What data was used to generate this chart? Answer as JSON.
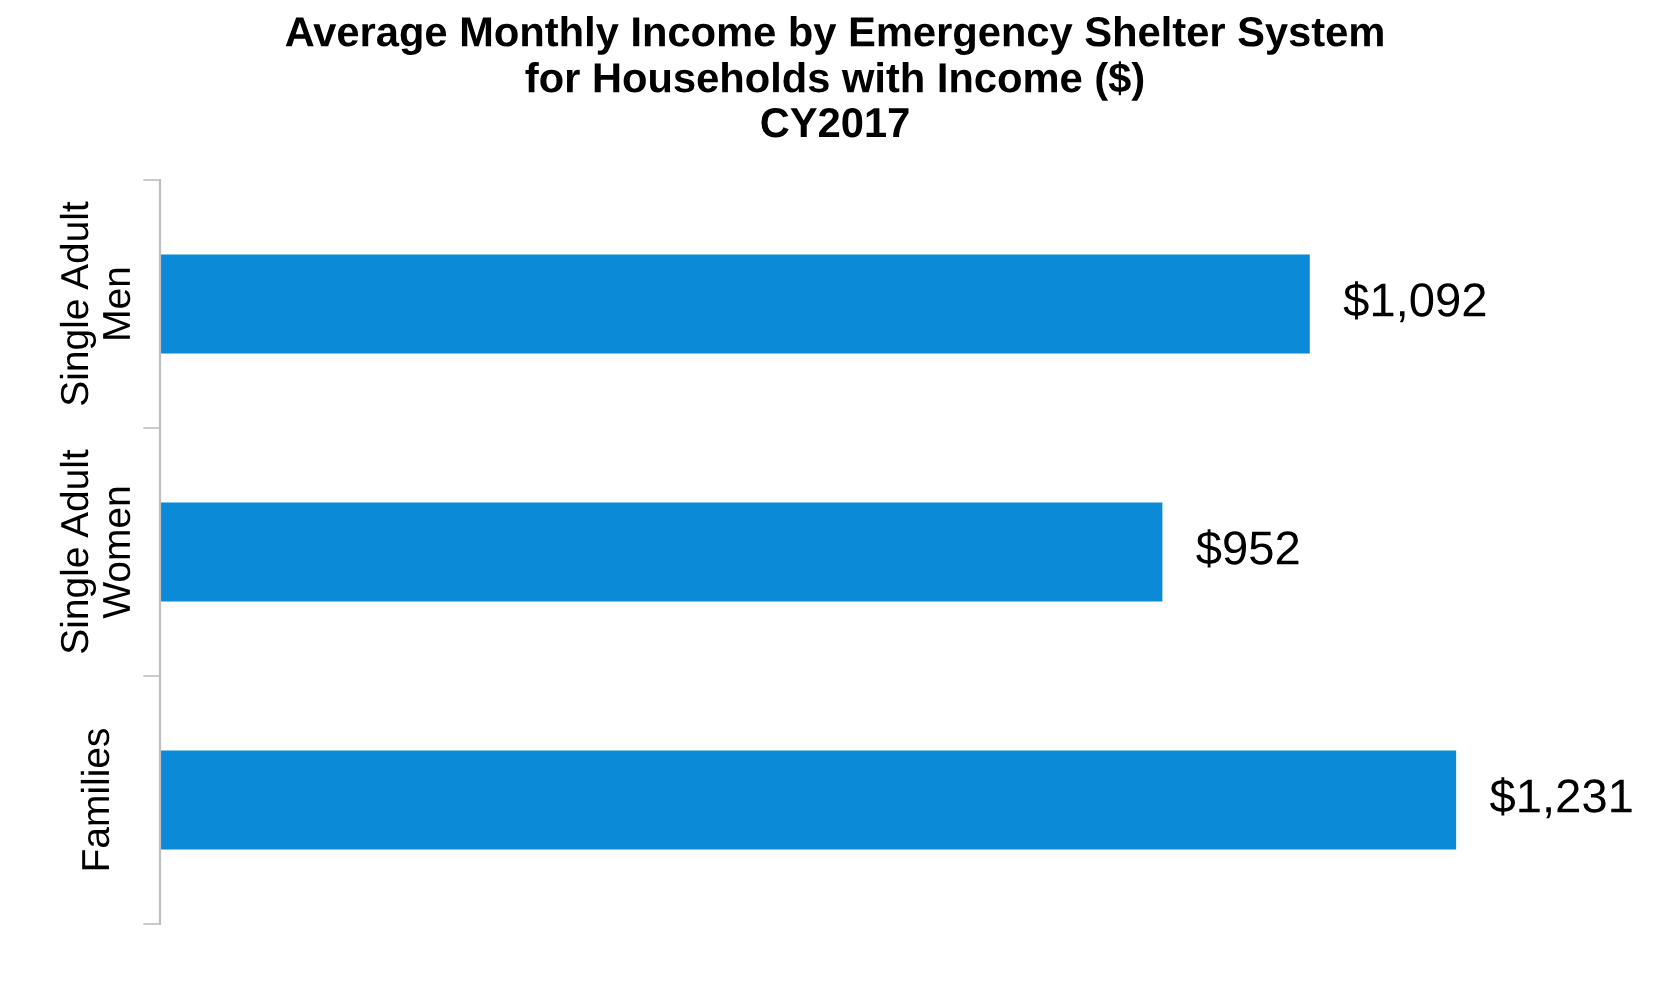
{
  "chart_data": {
    "type": "bar",
    "orientation": "horizontal",
    "title": "Average Monthly Income by Emergency Shelter System\nfor Households with Income ($)\nCY2017",
    "categories": [
      "Single Adult\nMen",
      "Single Adult\nWomen",
      "Families"
    ],
    "values": [
      1092,
      952,
      1231
    ],
    "color": "#0b8ad8",
    "value_labels": [
      "$1,092",
      "$952",
      "$1,231"
    ],
    "grid": false,
    "legend": false
  }
}
